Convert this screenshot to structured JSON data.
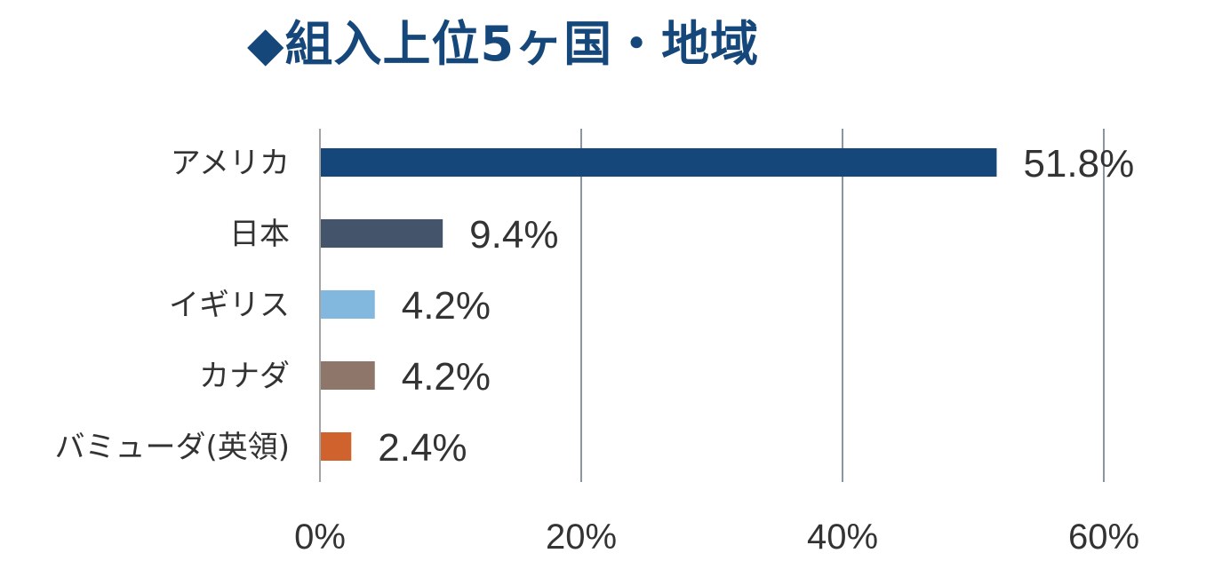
{
  "header": {
    "title": "◆組入上位5ヶ国・地域"
  },
  "chart_data": {
    "type": "bar",
    "orientation": "horizontal",
    "title": "◆組入上位5ヶ国・地域",
    "categories": [
      "アメリカ",
      "日本",
      "イギリス",
      "カナダ",
      "バミューダ(英領)"
    ],
    "values": [
      51.8,
      9.4,
      4.2,
      4.2,
      2.4
    ],
    "value_labels": [
      "51.8%",
      "9.4%",
      "4.2%",
      "4.2%",
      "2.4%"
    ],
    "colors": [
      "#16477a",
      "#44546a",
      "#82b8de",
      "#8e776a",
      "#d0622e"
    ],
    "xlim": [
      0,
      60
    ],
    "xticks": [
      0,
      20,
      40,
      60
    ],
    "xtick_labels": [
      "0%",
      "20%",
      "40%",
      "60%"
    ],
    "xlabel": "",
    "ylabel": "",
    "grid": true,
    "legend": "none"
  }
}
